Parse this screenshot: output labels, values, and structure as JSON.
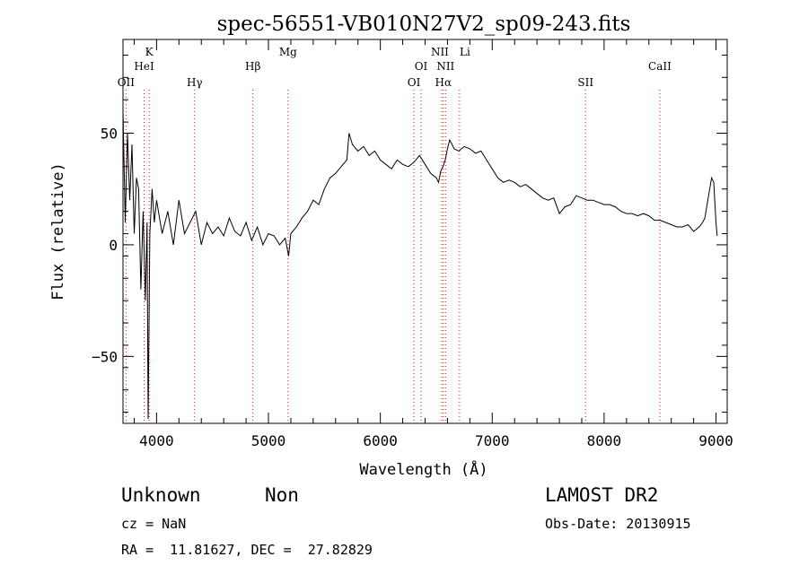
{
  "chart_data": {
    "type": "line",
    "title": "spec-56551-VB010N27V2_sp09-243.fits",
    "xlabel": "Wavelength (Å)",
    "ylabel": "Flux (relative)",
    "xlim": [
      3700,
      9100
    ],
    "ylim": [
      -80,
      92
    ],
    "x_ticks": [
      4000,
      5000,
      6000,
      7000,
      8000,
      9000
    ],
    "x_tick_labels": [
      "4000",
      "5000",
      "6000",
      "7000",
      "8000",
      "9000"
    ],
    "y_ticks": [
      -50,
      0,
      50
    ],
    "y_tick_labels": [
      "−50",
      "0",
      "50"
    ],
    "grid": false,
    "line_color": "#000000",
    "marker_color": "#ff0000",
    "lines": [
      {
        "name": "OII",
        "x": 3727
      },
      {
        "name": "K",
        "x": 3934
      },
      {
        "name": "HeI",
        "x": 3889
      },
      {
        "name": "Hγ",
        "x": 4340
      },
      {
        "name": "Hβ",
        "x": 4861
      },
      {
        "name": "Mg",
        "x": 5175
      },
      {
        "name": "OI",
        "x": 6300
      },
      {
        "name": "OI",
        "x": 6364
      },
      {
        "name": "NII",
        "x": 6548
      },
      {
        "name": "Hα",
        "x": 6563
      },
      {
        "name": "NII",
        "x": 6583
      },
      {
        "name": "Li",
        "x": 6708
      },
      {
        "name": "SII",
        "x": 7834
      },
      {
        "name": "CaII",
        "x": 8498
      }
    ],
    "series": [
      {
        "x": [
          3700,
          3720,
          3740,
          3760,
          3780,
          3800,
          3820,
          3840,
          3860,
          3880,
          3900,
          3915,
          3925,
          3940,
          3960,
          3980,
          4000,
          4050,
          4100,
          4150,
          4200,
          4250,
          4300,
          4350,
          4400,
          4450,
          4500,
          4550,
          4600,
          4650,
          4700,
          4750,
          4800,
          4850,
          4900,
          4950,
          5000,
          5050,
          5100,
          5150,
          5180,
          5200,
          5250,
          5300,
          5350,
          5400,
          5450,
          5500,
          5550,
          5600,
          5650,
          5700,
          5720,
          5750,
          5800,
          5850,
          5900,
          5950,
          6000,
          6050,
          6100,
          6150,
          6200,
          6250,
          6300,
          6350,
          6400,
          6450,
          6500,
          6520,
          6540,
          6560,
          6580,
          6600,
          6620,
          6640,
          6660,
          6700,
          6750,
          6800,
          6850,
          6900,
          6950,
          7000,
          7050,
          7100,
          7150,
          7200,
          7250,
          7300,
          7350,
          7400,
          7450,
          7500,
          7550,
          7600,
          7650,
          7700,
          7750,
          7800,
          7850,
          7900,
          7950,
          8000,
          8050,
          8100,
          8150,
          8200,
          8250,
          8300,
          8350,
          8400,
          8450,
          8500,
          8550,
          8600,
          8650,
          8700,
          8750,
          8800,
          8850,
          8880,
          8900,
          8920,
          8940,
          8960,
          8980,
          9000,
          9010
        ],
        "y": [
          60,
          10,
          50,
          20,
          45,
          5,
          30,
          25,
          -20,
          15,
          -25,
          10,
          -78,
          5,
          25,
          10,
          20,
          5,
          15,
          0,
          20,
          5,
          10,
          15,
          0,
          10,
          5,
          8,
          4,
          12,
          6,
          4,
          10,
          2,
          8,
          0,
          5,
          4,
          0,
          3,
          -5,
          5,
          8,
          12,
          15,
          20,
          18,
          25,
          30,
          32,
          35,
          38,
          50,
          45,
          42,
          44,
          40,
          42,
          38,
          36,
          34,
          38,
          36,
          35,
          37,
          40,
          36,
          32,
          30,
          28,
          33,
          35,
          38,
          43,
          47,
          45,
          43,
          42,
          44,
          43,
          41,
          42,
          38,
          34,
          30,
          28,
          29,
          28,
          26,
          27,
          25,
          23,
          21,
          20,
          21,
          14,
          17,
          18,
          22,
          21,
          20,
          20,
          19,
          18,
          18,
          17,
          15,
          14,
          14,
          13,
          14,
          13,
          11,
          11,
          10,
          9,
          8,
          8,
          9,
          6,
          8,
          10,
          12,
          18,
          24,
          30,
          28,
          10,
          4
        ]
      }
    ]
  },
  "footer": {
    "object_class": "Unknown",
    "subclass": "Non",
    "survey": "LAMOST DR2",
    "redshift": "cz = NaN",
    "obs_date": "Obs-Date: 20130915",
    "coordinates": "RA =  11.81627, DEC =  27.82829"
  }
}
